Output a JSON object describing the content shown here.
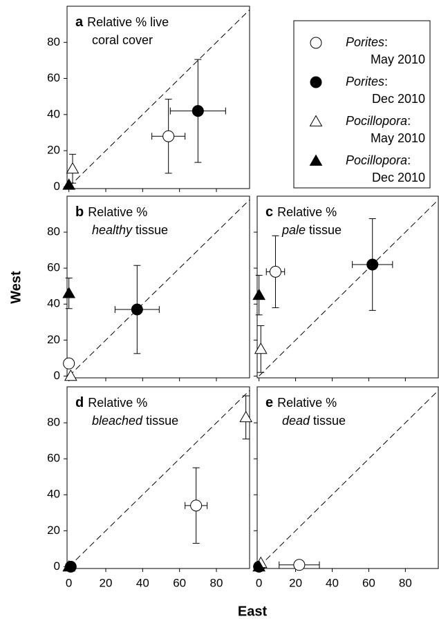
{
  "x_label": "East",
  "y_label": "West",
  "legend": [
    {
      "taxon": "Porites",
      "punct": ":",
      "period": "May 2010",
      "marker": "circle",
      "filled": false
    },
    {
      "taxon": "Porites",
      "punct": ":",
      "period": "Dec 2010",
      "marker": "circle",
      "filled": true
    },
    {
      "taxon": "Pocillopora",
      "punct": ":",
      "period": "May 2010",
      "marker": "triangle",
      "filled": false
    },
    {
      "taxon": "Pocillopora",
      "punct": ":",
      "period": "Dec 2010",
      "marker": "triangle",
      "filled": true
    }
  ],
  "chart_data": [
    {
      "type": "scatter",
      "letter": "a",
      "title": "Relative % live",
      "subtitle": "coral cover",
      "xlim": [
        -1,
        98
      ],
      "ylim": [
        -1,
        100
      ],
      "xticks": [
        0,
        20,
        40,
        60,
        80
      ],
      "yticks": [
        0,
        20,
        40,
        60,
        80
      ],
      "xtick_labels": false,
      "ytick_labels": true,
      "diagonal": true,
      "points": [
        {
          "x": 54,
          "y": 28,
          "xerr": 9,
          "yerr": 20.5
        },
        {
          "x": 70,
          "y": 42,
          "xerr": 15,
          "yerr": 28.5
        },
        {
          "x": 2,
          "y": 10,
          "yerr": 8
        },
        {
          "x": 0,
          "y": 1
        }
      ]
    },
    {
      "type": "scatter",
      "letter": "b",
      "title": "Relative %",
      "subtitle_italic": "healthy",
      "subtitle": "tissue",
      "xlim": [
        -1,
        98
      ],
      "ylim": [
        -1,
        100
      ],
      "xticks": [
        0,
        20,
        40,
        60,
        80
      ],
      "yticks": [
        0,
        20,
        40,
        60,
        80
      ],
      "xtick_labels": false,
      "ytick_labels": true,
      "diagonal": true,
      "points": [
        {
          "x": 0,
          "y": 7
        },
        {
          "x": 37,
          "y": 37,
          "xerr": 12,
          "yerr": 24.5
        },
        {
          "x": 1,
          "y": 0
        },
        {
          "x": 0,
          "y": 46,
          "yerr": 8.5
        }
      ]
    },
    {
      "type": "scatter",
      "letter": "c",
      "title": "Relative %",
      "subtitle_italic": "pale",
      "subtitle": "tissue",
      "xlim": [
        -1,
        98
      ],
      "ylim": [
        -1,
        100
      ],
      "xticks": [
        0,
        20,
        40,
        60,
        80
      ],
      "yticks": [
        0,
        20,
        40,
        60,
        80
      ],
      "xtick_labels": false,
      "ytick_labels": false,
      "diagonal": true,
      "points": [
        {
          "x": 9,
          "y": 58,
          "xerr": 5,
          "yerr": 20
        },
        {
          "x": 62,
          "y": 62,
          "xerr": 11,
          "yerr": 25.5
        },
        {
          "x": 1,
          "y": 15,
          "yerr": 13
        },
        {
          "x": 0,
          "y": 45,
          "yerr": 11
        }
      ]
    },
    {
      "type": "scatter",
      "letter": "d",
      "title": "Relative %",
      "subtitle_italic": "bleached",
      "subtitle": "tissue",
      "xlim": [
        -1,
        98
      ],
      "ylim": [
        -1,
        100
      ],
      "xticks": [
        0,
        20,
        40,
        60,
        80
      ],
      "yticks": [
        0,
        20,
        40,
        60,
        80
      ],
      "xtick_labels": true,
      "ytick_labels": true,
      "diagonal": true,
      "points": [
        {
          "x": 69,
          "y": 34,
          "xerr": 6,
          "yerr": 21
        },
        {
          "x": 1,
          "y": 0
        },
        {
          "x": 96,
          "y": 83,
          "yerr": 12
        },
        {
          "x": 0,
          "y": 0
        }
      ]
    },
    {
      "type": "scatter",
      "letter": "e",
      "title": "Relative %",
      "subtitle_italic": "dead",
      "subtitle": "tissue",
      "xlim": [
        -1,
        98
      ],
      "ylim": [
        -1,
        100
      ],
      "xticks": [
        0,
        20,
        40,
        60,
        80
      ],
      "yticks": [
        0,
        20,
        40,
        60,
        80
      ],
      "xtick_labels": true,
      "ytick_labels": false,
      "diagonal": true,
      "points": [
        {
          "x": 22,
          "y": 1,
          "xerr": 11
        },
        {
          "x": 0,
          "y": 0
        },
        {
          "x": 1,
          "y": 2
        },
        {
          "x": 0,
          "y": 0
        }
      ]
    }
  ]
}
